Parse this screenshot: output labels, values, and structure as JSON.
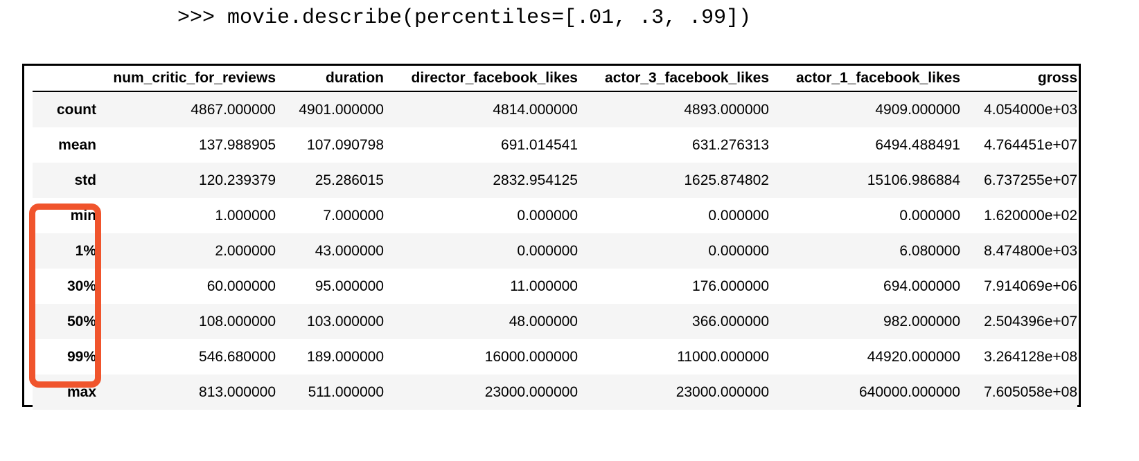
{
  "code": {
    "prompt": ">>> movie.describe(percentiles=[.01, .3, .99])"
  },
  "table": {
    "columns": [
      "num_critic_for_reviews",
      "duration",
      "director_facebook_likes",
      "actor_3_facebook_likes",
      "actor_1_facebook_likes",
      "gross"
    ],
    "rows": [
      {
        "label": "count",
        "values": [
          "4867.000000",
          "4901.000000",
          "4814.000000",
          "4893.000000",
          "4909.000000",
          "4.054000e+03"
        ]
      },
      {
        "label": "mean",
        "values": [
          "137.988905",
          "107.090798",
          "691.014541",
          "631.276313",
          "6494.488491",
          "4.764451e+07"
        ]
      },
      {
        "label": "std",
        "values": [
          "120.239379",
          "25.286015",
          "2832.954125",
          "1625.874802",
          "15106.986884",
          "6.737255e+07"
        ]
      },
      {
        "label": "min",
        "values": [
          "1.000000",
          "7.000000",
          "0.000000",
          "0.000000",
          "0.000000",
          "1.620000e+02"
        ]
      },
      {
        "label": "1%",
        "values": [
          "2.000000",
          "43.000000",
          "0.000000",
          "0.000000",
          "6.080000",
          "8.474800e+03"
        ]
      },
      {
        "label": "30%",
        "values": [
          "60.000000",
          "95.000000",
          "11.000000",
          "176.000000",
          "694.000000",
          "7.914069e+06"
        ]
      },
      {
        "label": "50%",
        "values": [
          "108.000000",
          "103.000000",
          "48.000000",
          "366.000000",
          "982.000000",
          "2.504396e+07"
        ]
      },
      {
        "label": "99%",
        "values": [
          "546.680000",
          "189.000000",
          "16000.000000",
          "11000.000000",
          "44920.000000",
          "3.264128e+08"
        ]
      },
      {
        "label": "max",
        "values": [
          "813.000000",
          "511.000000",
          "23000.000000",
          "23000.000000",
          "640000.000000",
          "7.605058e+08"
        ]
      }
    ]
  },
  "highlight": {
    "color": "#f0542c",
    "rows": [
      "min",
      "1%",
      "30%",
      "50%",
      "99%"
    ]
  }
}
